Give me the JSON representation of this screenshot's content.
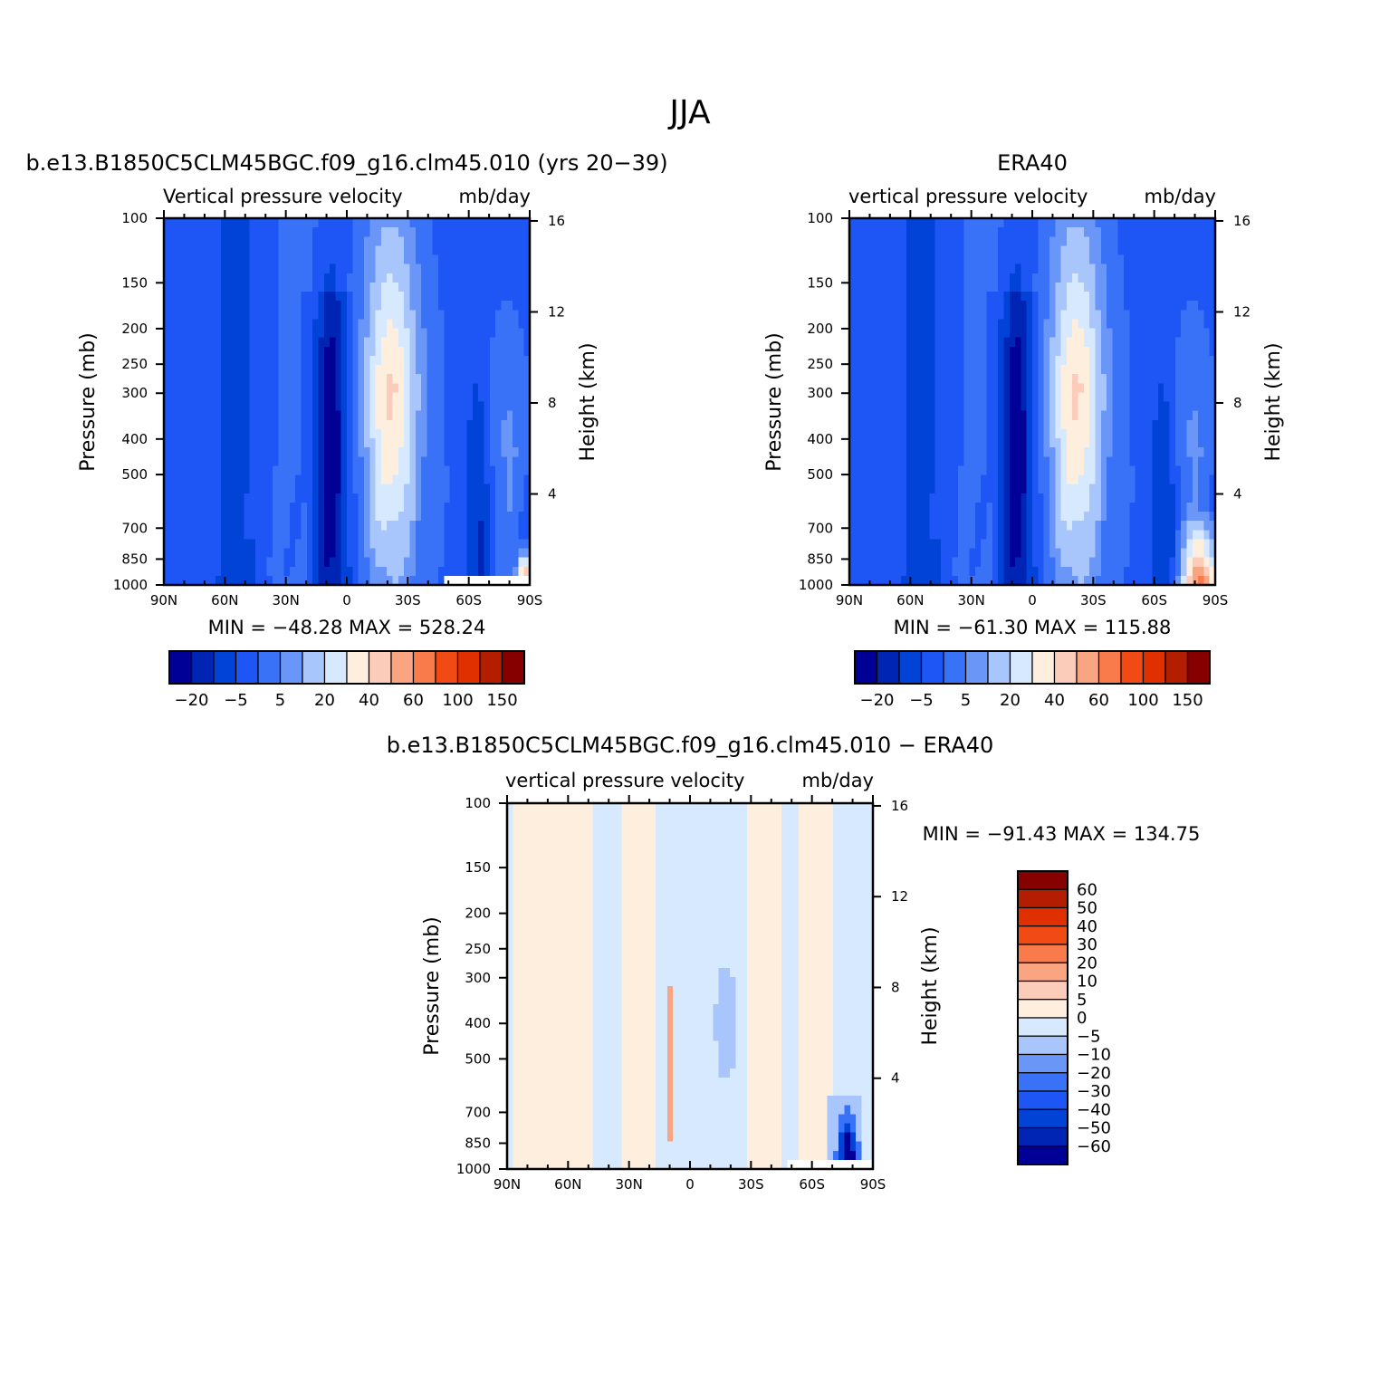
{
  "figure": {
    "title": "JJA"
  },
  "palettes": {
    "full": [
      "#000096",
      "#0024b4",
      "#0043d6",
      "#1e55f5",
      "#3a72f7",
      "#6a96f7",
      "#a8c6fb",
      "#d6e9fe",
      "#feeede",
      "#fcccbb",
      "#faa581",
      "#f97a4b",
      "#f24a15",
      "#e03000",
      "#b41e00",
      "#860000"
    ],
    "diff": [
      "#860000",
      "#b41e00",
      "#e03000",
      "#f24a15",
      "#f97a4b",
      "#faa581",
      "#fcccbb",
      "#feeede",
      "#d6e9fe",
      "#a8c6fb",
      "#6a96f7",
      "#3a72f7",
      "#1e55f5",
      "#0043d6",
      "#0024b4",
      "#000096"
    ]
  },
  "chart_data": [
    {
      "type": "heatmap",
      "title": "b.e13.B1850C5CLM45BGC.f09_g16.clm45.010 (yrs 20−39)",
      "subtitle_left": "Vertical pressure velocity",
      "subtitle_right": "mb/day",
      "ylabel": "Pressure (mb)",
      "ylabel_right": "Height (km)",
      "x_ticks": [
        "90N",
        "60N",
        "30N",
        "0",
        "30S",
        "60S",
        "90S"
      ],
      "y_ticks": [
        "100",
        "150",
        "200",
        "250",
        "300",
        "400",
        "500",
        "700",
        "850",
        "1000"
      ],
      "y_right_ticks": [
        "16",
        "12",
        "8",
        "4"
      ],
      "stats": "MIN = −48.28   MAX = 528.24",
      "colorbar_labels": [
        "−20",
        "−5",
        "5",
        "20",
        "40",
        "60",
        "100",
        "150"
      ]
    },
    {
      "type": "heatmap",
      "title": "ERA40",
      "subtitle_left": "vertical pressure velocity",
      "subtitle_right": "mb/day",
      "ylabel": "Pressure (mb)",
      "ylabel_right": "Height (km)",
      "x_ticks": [
        "90N",
        "60N",
        "30N",
        "0",
        "30S",
        "60S",
        "90S"
      ],
      "y_ticks": [
        "100",
        "150",
        "200",
        "250",
        "300",
        "400",
        "500",
        "700",
        "850",
        "1000"
      ],
      "y_right_ticks": [
        "16",
        "12",
        "8",
        "4"
      ],
      "stats": "MIN = −61.30   MAX = 115.88",
      "colorbar_labels": [
        "−20",
        "−5",
        "5",
        "20",
        "40",
        "60",
        "100",
        "150"
      ]
    },
    {
      "type": "heatmap",
      "title": "b.e13.B1850C5CLM45BGC.f09_g16.clm45.010 − ERA40",
      "subtitle_left": "vertical pressure velocity",
      "subtitle_right": "mb/day",
      "ylabel": "Pressure (mb)",
      "ylabel_right": "Height (km)",
      "x_ticks": [
        "90N",
        "60N",
        "30N",
        "0",
        "30S",
        "60S",
        "90S"
      ],
      "y_ticks": [
        "100",
        "150",
        "200",
        "250",
        "300",
        "400",
        "500",
        "700",
        "850",
        "1000"
      ],
      "y_right_ticks": [
        "16",
        "12",
        "8",
        "4"
      ],
      "stats": "MIN = −91.43   MAX = 134.75",
      "colorbar_labels": [
        "60",
        "50",
        "40",
        "30",
        "20",
        "10",
        "5",
        "0",
        "−5",
        "−10",
        "−20",
        "−30",
        "−40",
        "−50",
        "−60"
      ]
    }
  ]
}
